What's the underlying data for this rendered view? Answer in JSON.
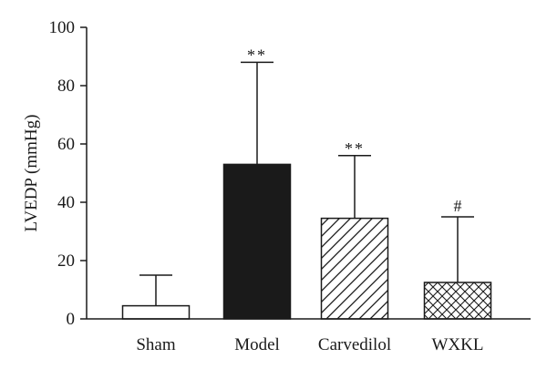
{
  "chart_data": {
    "type": "bar",
    "ylabel": "LVEDP (mmHg)",
    "ylim": [
      0,
      100
    ],
    "yticks": [
      0,
      20,
      40,
      60,
      80,
      100
    ],
    "categories": [
      "Sham",
      "Model",
      "Carvedilol",
      "WXKL"
    ],
    "values": [
      4.5,
      53,
      34.5,
      12.5
    ],
    "errors": [
      10.5,
      35,
      21.5,
      22.5
    ],
    "annotations": [
      "",
      "**",
      "**",
      "#"
    ],
    "fills": [
      "white",
      "black",
      "diagonal-hatch",
      "cross-hatch"
    ],
    "grid": false
  }
}
